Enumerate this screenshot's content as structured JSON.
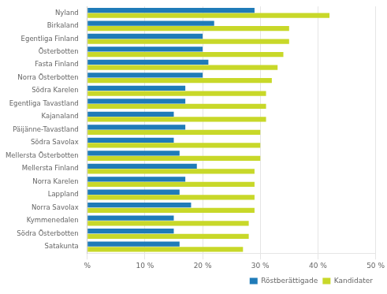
{
  "chart_data": {
    "type": "bar",
    "orientation": "horizontal",
    "categories": [
      "Nyland",
      "Birkaland",
      "Egentliga Finland",
      "Österbotten",
      "Fasta Finland",
      "Norra Österbotten",
      "Södra Karelen",
      "Egentliga Tavastland",
      "Kajanaland",
      "Päijänne-Tavastland",
      "Södra Savolax",
      "Mellersta Österbotten",
      "Mellersta Finland",
      "Norra Karelen",
      "Lappland",
      "Norra Savolax",
      "Kymmenedalen",
      "Södra Österbotten",
      "Satakunta"
    ],
    "series": [
      {
        "name": "Röstberättigade",
        "color": "#1F7BB8",
        "values": [
          29,
          22,
          20,
          20,
          21,
          20,
          17,
          17,
          15,
          17,
          15,
          16,
          19,
          17,
          16,
          18,
          15,
          15,
          16
        ]
      },
      {
        "name": "Kandidater",
        "color": "#C8D829",
        "values": [
          42,
          35,
          35,
          34,
          33,
          32,
          31,
          31,
          31,
          30,
          30,
          30,
          29,
          29,
          29,
          29,
          28,
          28,
          27
        ]
      }
    ],
    "xlim": [
      0,
      50
    ],
    "xticks": [
      {
        "value": 0,
        "label": "%"
      },
      {
        "value": 10,
        "label": "10 %"
      },
      {
        "value": 20,
        "label": "20 %"
      },
      {
        "value": 30,
        "label": "30 %"
      },
      {
        "value": 40,
        "label": "40 %"
      },
      {
        "value": 50,
        "label": "50 %"
      }
    ],
    "grid": true,
    "legend": "lower right"
  }
}
